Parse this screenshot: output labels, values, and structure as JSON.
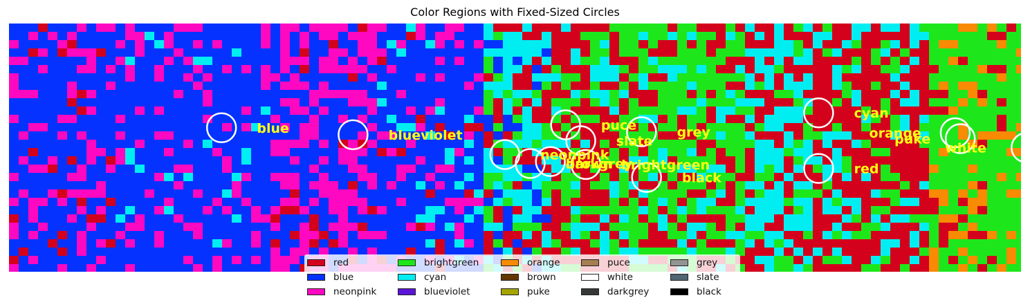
{
  "chart_data": {
    "type": "heatmap",
    "title": "Color Regions with Fixed-Sized Circles",
    "xlabel": "",
    "ylabel": "",
    "axes_visible": false,
    "x_range": [
      0,
      100
    ],
    "y_range": [
      0,
      25
    ],
    "region_columns": [
      {
        "label": "blue",
        "color": "#0532ff",
        "from": 0,
        "to": 25
      },
      {
        "label": "blue/neonpink",
        "color": "#ff08c1",
        "from": 25,
        "to": 36
      },
      {
        "label": "blue",
        "color": "#0532ff",
        "from": 36,
        "to": 46
      },
      {
        "label": "cyan/red",
        "color": "#00eef2",
        "from": 46,
        "to": 53
      },
      {
        "label": "red/brightgreen",
        "color": "#d4011c",
        "from": 53,
        "to": 60
      },
      {
        "label": "brightgreen",
        "color": "#1de71b",
        "from": 60,
        "to": 72
      },
      {
        "label": "cyan/red",
        "color": "#00eef2",
        "from": 72,
        "to": 79
      },
      {
        "label": "red",
        "color": "#d4011c",
        "from": 79,
        "to": 90
      },
      {
        "label": "brightgreen/orange",
        "color": "#1de71b",
        "from": 90,
        "to": 100
      }
    ],
    "circles": [
      {
        "name": "blue",
        "x": 21.0,
        "y": 14.5
      },
      {
        "name": "blueviolet",
        "x": 34.0,
        "y": 13.8
      },
      {
        "name": "neonpink",
        "x": 49.0,
        "y": 11.8
      },
      {
        "name": "brown",
        "x": 51.5,
        "y": 10.9
      },
      {
        "name": "darkgrey",
        "x": 53.5,
        "y": 11.1
      },
      {
        "name": "puce",
        "x": 55.0,
        "y": 14.8
      },
      {
        "name": "slate",
        "x": 56.5,
        "y": 13.2
      },
      {
        "name": "brightgreen",
        "x": 57.0,
        "y": 10.8
      },
      {
        "name": "grey",
        "x": 62.5,
        "y": 14.1
      },
      {
        "name": "black",
        "x": 63.0,
        "y": 9.5
      },
      {
        "name": "cyan",
        "x": 80.0,
        "y": 16.0
      },
      {
        "name": "red",
        "x": 80.0,
        "y": 10.4
      },
      {
        "name": "orange",
        "x": 93.5,
        "y": 14.0
      },
      {
        "name": "puke",
        "x": 94.0,
        "y": 13.4
      },
      {
        "name": "white",
        "x": 100.5,
        "y": 12.5
      }
    ],
    "labels": [
      {
        "text": "blue",
        "x": 24.5,
        "y": 14.5
      },
      {
        "text": "blueviolet",
        "x": 37.5,
        "y": 13.8
      },
      {
        "text": "neonpink",
        "x": 52.5,
        "y": 11.8
      },
      {
        "text": "brown",
        "x": 55.0,
        "y": 10.9
      },
      {
        "text": "darkgrey",
        "x": 55.0,
        "y": 10.9
      },
      {
        "text": "puce",
        "x": 58.5,
        "y": 14.8
      },
      {
        "text": "slate",
        "x": 60.0,
        "y": 13.2
      },
      {
        "text": "grey",
        "x": 66.0,
        "y": 14.1
      },
      {
        "text": "brightgreen",
        "x": 60.5,
        "y": 10.8
      },
      {
        "text": "black",
        "x": 66.5,
        "y": 9.5
      },
      {
        "text": "cyan",
        "x": 83.5,
        "y": 16.0
      },
      {
        "text": "orange",
        "x": 85.0,
        "y": 14.0
      },
      {
        "text": "puke",
        "x": 87.5,
        "y": 13.4
      },
      {
        "text": "red",
        "x": 83.5,
        "y": 10.4
      },
      {
        "text": "white",
        "x": 92.5,
        "y": 12.5
      }
    ],
    "legend": {
      "placement": "bottom-center",
      "columns": 5,
      "entries": [
        {
          "label": "red",
          "color": "#d4011c"
        },
        {
          "label": "blue",
          "color": "#0532ff"
        },
        {
          "label": "neonpink",
          "color": "#ff08c1"
        },
        {
          "label": "brightgreen",
          "color": "#1de71b"
        },
        {
          "label": "cyan",
          "color": "#00eef2"
        },
        {
          "label": "blueviolet",
          "color": "#5b15d8"
        },
        {
          "label": "orange",
          "color": "#f98a04"
        },
        {
          "label": "brown",
          "color": "#653700"
        },
        {
          "label": "puke",
          "color": "#a5a502"
        },
        {
          "label": "puce",
          "color": "#a57e52"
        },
        {
          "label": "white",
          "color": "#ffffff"
        },
        {
          "label": "darkgrey",
          "color": "#363737"
        },
        {
          "label": "grey",
          "color": "#929591"
        },
        {
          "label": "slate",
          "color": "#516572"
        },
        {
          "label": "black",
          "color": "#000000"
        }
      ]
    },
    "circle_color": "#ffffff",
    "label_color": "#ffff14"
  }
}
